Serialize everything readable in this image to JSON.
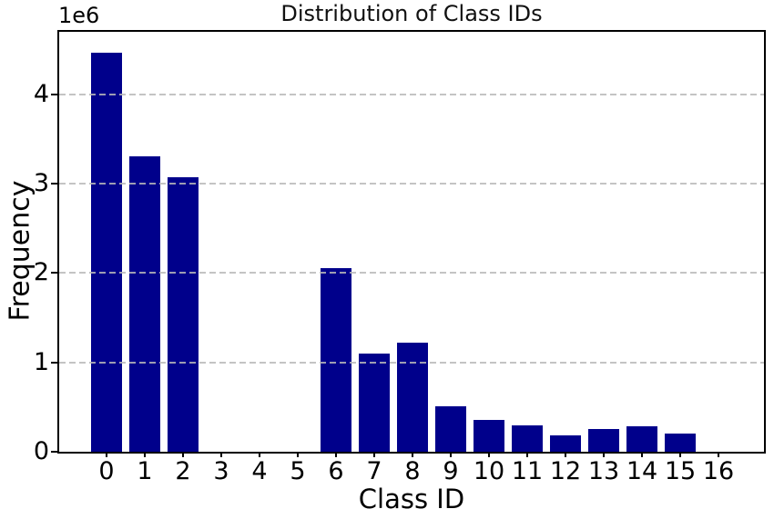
{
  "chart_data": {
    "type": "bar",
    "title": "Distribution of Class IDs",
    "xlabel": "Class ID",
    "ylabel": "Frequency",
    "offset_text": "1e6",
    "categories": [
      "0",
      "1",
      "2",
      "3",
      "4",
      "5",
      "6",
      "7",
      "8",
      "9",
      "10",
      "11",
      "12",
      "13",
      "14",
      "15",
      "16"
    ],
    "values": [
      4470000,
      3310000,
      3070000,
      0,
      0,
      0,
      2050000,
      1100000,
      1220000,
      510000,
      360000,
      290000,
      180000,
      250000,
      280000,
      200000,
      0
    ],
    "ylim": [
      0,
      4700000
    ],
    "yticks": [
      0,
      1000000,
      2000000,
      3000000,
      4000000
    ],
    "ytick_labels": [
      "0",
      "1",
      "2",
      "3",
      "4"
    ],
    "bar_color": "#00008B",
    "grid": "horizontal-dashed",
    "grid_color": "#b9b9b9",
    "legend": "none"
  }
}
